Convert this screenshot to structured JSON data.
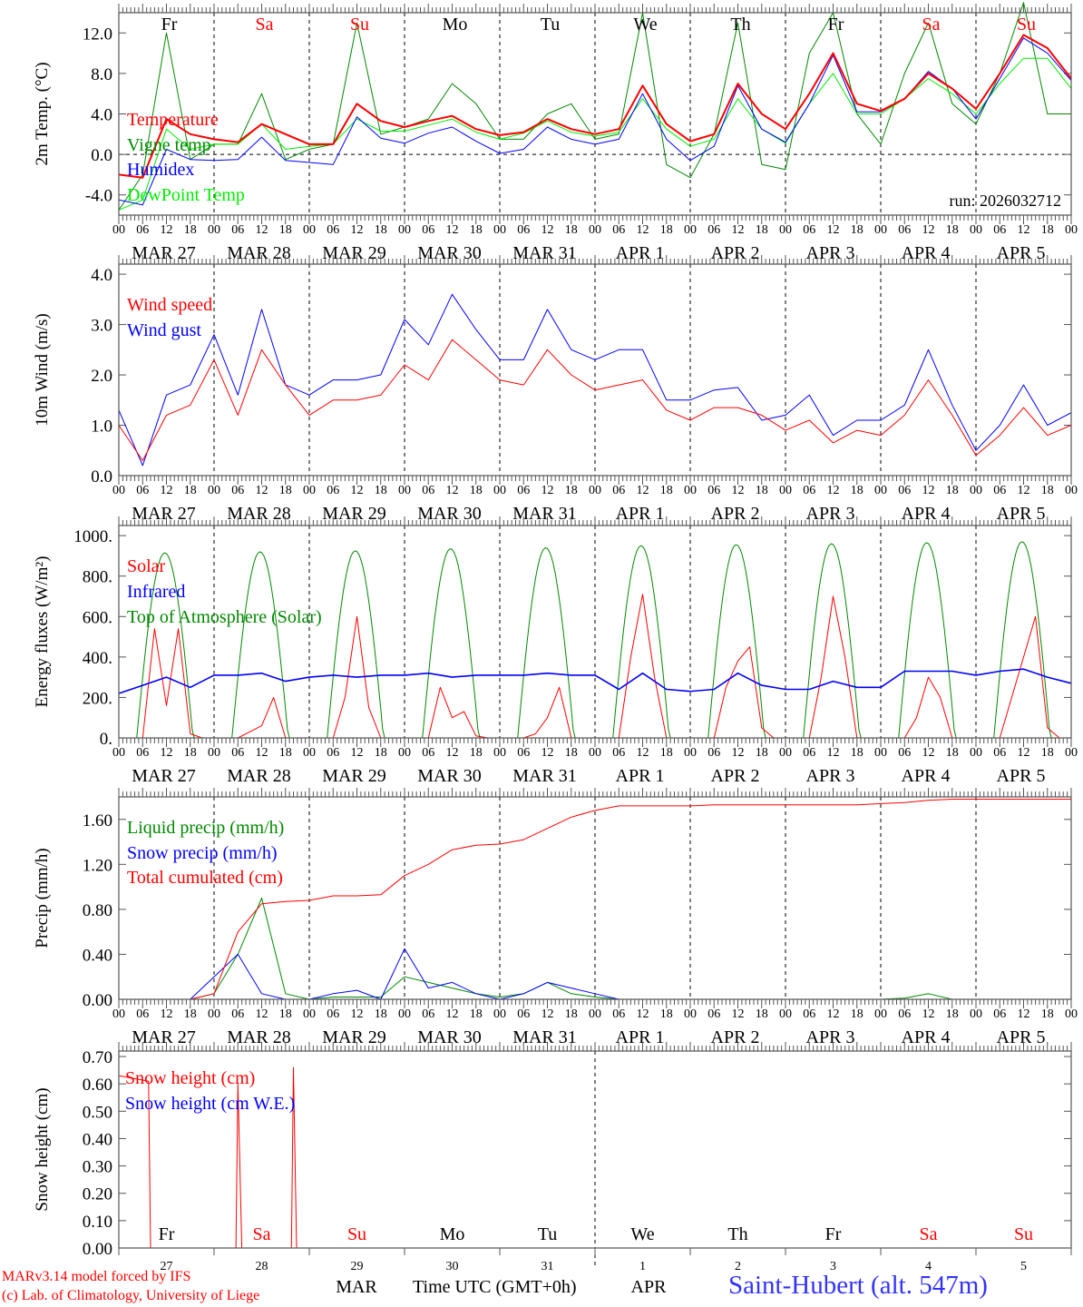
{
  "footer": {
    "credit_model": "MARv3.14 model forced by IFS",
    "credit_lab": "(c) Lab. of Climatology, University of Liege",
    "station": "Saint-Hubert (alt. 547m)",
    "xlabel": "Time UTC (GMT+0h)",
    "months": [
      "MAR",
      "APR"
    ]
  },
  "x_axis": {
    "hour_labels": [
      "00",
      "06",
      "12",
      "18"
    ],
    "end_label": "00",
    "dates": [
      "MAR 27",
      "MAR 28",
      "MAR 29",
      "MAR 30",
      "MAR 31",
      "APR 1",
      "APR 2",
      "APR 3",
      "APR 4",
      "APR 5"
    ],
    "day_numbers": [
      "27",
      "28",
      "29",
      "30",
      "31",
      "1",
      "2",
      "3",
      "4",
      "5"
    ],
    "weekdays": [
      "Fr",
      "Sa",
      "Su",
      "Mo",
      "Tu",
      "We",
      "Th",
      "Fr",
      "Sa",
      "Su"
    ],
    "weekday_colors": [
      "#000000",
      "#ff0000",
      "#ff0000",
      "#000000",
      "#000000",
      "#000000",
      "#000000",
      "#000000",
      "#ff0000",
      "#ff0000"
    ]
  },
  "chart_data": [
    {
      "type": "line",
      "ylabel": "2m Temp. (°C)",
      "ylim": [
        -6,
        14
      ],
      "yticks": [
        -4,
        0,
        4,
        8,
        12
      ],
      "ytick_labels": [
        "-4.0",
        "0.0",
        "4.0",
        "8.0",
        "12.0"
      ],
      "xlim_hours": [
        0,
        240
      ],
      "annotation": "run: 2026032712",
      "zero_line": true,
      "series": [
        {
          "name": "Vigne temp",
          "color": "#008800",
          "step": 6,
          "values": [
            -5.5,
            -2,
            12,
            -0.5,
            1,
            1,
            6,
            -0.5,
            0.5,
            1,
            13,
            2,
            2.7,
            3.5,
            7,
            5,
            1.5,
            1.5,
            4,
            5,
            1.5,
            2,
            14,
            -1,
            -2.3,
            2,
            13,
            -1,
            -1.5,
            10,
            14,
            4,
            1,
            8,
            13,
            5,
            3,
            8,
            15,
            4,
            4
          ]
        },
        {
          "name": "DewPoint Temp",
          "color": "#00ee00",
          "step": 6,
          "values": [
            -5.5,
            -4.5,
            2.5,
            0.5,
            1,
            1,
            3,
            0.5,
            0.8,
            1,
            3.5,
            2.3,
            2.3,
            2.9,
            3.5,
            2.2,
            1.5,
            2.1,
            3.3,
            2.2,
            1.8,
            2.2,
            5.5,
            2.5,
            0.8,
            1.5,
            5.5,
            2.5,
            1.1,
            5,
            8,
            4,
            4,
            5.5,
            7.5,
            6,
            4,
            7,
            9.5,
            9.5,
            6.5
          ]
        },
        {
          "name": "Humidex",
          "color": "#0000ff",
          "step": 6,
          "values": [
            -4.5,
            -5,
            0.5,
            -0.5,
            -0.6,
            -0.5,
            1.7,
            -0.6,
            -0.8,
            -1,
            3.7,
            1.6,
            1.1,
            2.1,
            2.7,
            1.3,
            0.1,
            0.5,
            2.7,
            1.5,
            1,
            1.5,
            6,
            1.5,
            -0.6,
            0.8,
            6.8,
            2.5,
            1.2,
            5,
            9.8,
            4.2,
            4.2,
            5.5,
            8.2,
            6.5,
            3.5,
            7.5,
            11.5,
            10,
            7.3
          ]
        },
        {
          "name": "Temperature",
          "color": "#ff0000",
          "width": 2,
          "step": 6,
          "values": [
            -2,
            -2.3,
            3.5,
            2,
            1.5,
            1.2,
            3,
            2,
            1,
            1,
            5,
            3.3,
            2.7,
            3.3,
            3.8,
            2.5,
            1.9,
            2.2,
            3.5,
            2.5,
            2,
            2.5,
            6.8,
            3,
            1.3,
            2,
            7,
            4,
            2.5,
            6,
            10,
            5,
            4.3,
            5.5,
            8,
            6.5,
            4.5,
            8,
            11.8,
            10.5,
            7.5
          ]
        }
      ],
      "legend": [
        {
          "label": "Temperature",
          "color": "#ff0000"
        },
        {
          "label": "Vigne temp",
          "color": "#008800"
        },
        {
          "label": "Humidex",
          "color": "#0000ff"
        },
        {
          "label": "DewPoint Temp",
          "color": "#00ee00"
        }
      ]
    },
    {
      "type": "line",
      "ylabel": "10m Wind (m/s)",
      "ylim": [
        0,
        4.2
      ],
      "yticks": [
        0,
        1,
        2,
        3,
        4
      ],
      "ytick_labels": [
        "0.0",
        "1.0",
        "2.0",
        "3.0",
        "4.0"
      ],
      "xlim_hours": [
        0,
        240
      ],
      "series": [
        {
          "name": "Wind gust",
          "color": "#0000ff",
          "step": 6,
          "values": [
            1.3,
            0.2,
            1.6,
            1.8,
            2.8,
            1.6,
            3.3,
            1.8,
            1.6,
            1.9,
            1.9,
            2.0,
            3.1,
            2.6,
            3.6,
            2.9,
            2.3,
            2.3,
            3.3,
            2.5,
            2.3,
            2.5,
            2.5,
            1.5,
            1.5,
            1.7,
            1.75,
            1.1,
            1.2,
            1.6,
            0.8,
            1.1,
            1.1,
            1.4,
            2.5,
            1.4,
            0.5,
            1.0,
            1.8,
            1.0,
            1.25
          ]
        },
        {
          "name": "Wind speed",
          "color": "#ff0000",
          "step": 6,
          "values": [
            1.0,
            0.3,
            1.2,
            1.4,
            2.3,
            1.2,
            2.5,
            1.8,
            1.2,
            1.5,
            1.5,
            1.6,
            2.2,
            1.9,
            2.7,
            2.3,
            1.9,
            1.8,
            2.5,
            2.0,
            1.7,
            1.8,
            1.9,
            1.3,
            1.1,
            1.35,
            1.35,
            1.2,
            0.9,
            1.1,
            0.65,
            0.9,
            0.8,
            1.2,
            1.9,
            1.2,
            0.4,
            0.8,
            1.35,
            0.8,
            1.0
          ]
        }
      ],
      "legend": [
        {
          "label": "Wind speed",
          "color": "#ff0000"
        },
        {
          "label": "Wind gust",
          "color": "#0000ff"
        }
      ]
    },
    {
      "type": "line",
      "ylabel": "Energy fluxes (W/m²)",
      "ylim": [
        0,
        1050
      ],
      "yticks": [
        0,
        200,
        400,
        600,
        800,
        1000
      ],
      "ytick_labels": [
        "0.",
        "200.",
        "400.",
        "600.",
        "800.",
        "1000."
      ],
      "xlim_hours": [
        0,
        240
      ],
      "toa": {
        "name": "Top of Atmosphere (Solar)",
        "color": "#008800",
        "daily_peaks": [
          915,
          920,
          925,
          935,
          940,
          950,
          955,
          960,
          965,
          970
        ],
        "sunrise_hour": 4.5,
        "sunset_hour": 18.7
      },
      "series": [
        {
          "name": "Solar",
          "color": "#ff0000",
          "step": 3,
          "values": [
            0,
            0,
            0,
            540,
            160,
            540,
            20,
            0,
            0,
            0,
            0,
            30,
            60,
            200,
            0,
            0,
            0,
            0,
            0,
            200,
            600,
            150,
            0,
            0,
            0,
            0,
            0,
            250,
            100,
            130,
            10,
            0,
            0,
            0,
            0,
            20,
            100,
            250,
            0,
            0,
            0,
            0,
            0,
            400,
            710,
            300,
            0,
            0,
            0,
            0,
            0,
            250,
            380,
            450,
            50,
            0,
            0,
            0,
            0,
            300,
            700,
            400,
            0,
            0,
            0,
            0,
            0,
            100,
            300,
            200,
            0,
            0,
            0,
            0,
            0,
            200,
            400,
            600,
            50,
            0,
            0
          ]
        },
        {
          "name": "Infrared",
          "color": "#0000ff",
          "width": 1.6,
          "step": 6,
          "values": [
            220,
            260,
            300,
            250,
            310,
            310,
            320,
            280,
            300,
            310,
            300,
            310,
            310,
            320,
            300,
            310,
            310,
            310,
            320,
            310,
            310,
            240,
            320,
            240,
            230,
            240,
            320,
            260,
            240,
            240,
            280,
            250,
            250,
            330,
            330,
            330,
            310,
            330,
            340,
            300,
            270
          ]
        }
      ],
      "legend": [
        {
          "label": "Solar",
          "color": "#ff0000"
        },
        {
          "label": "Infrared",
          "color": "#0000ff"
        },
        {
          "label": "Top of Atmosphere (Solar)",
          "color": "#008800"
        }
      ]
    },
    {
      "type": "line",
      "ylabel": "Precip (mm/h)",
      "ylim": [
        0,
        1.8
      ],
      "yticks": [
        0,
        0.4,
        0.8,
        1.2,
        1.6
      ],
      "ytick_labels": [
        "0.00",
        "0.40",
        "0.80",
        "1.20",
        "1.60"
      ],
      "xlim_hours": [
        0,
        240
      ],
      "series": [
        {
          "name": "Liquid precip (mm/h)",
          "color": "#008800",
          "step": 6,
          "values": [
            0,
            0,
            0,
            0,
            0.05,
            0.4,
            0.9,
            0.05,
            0,
            0.02,
            0.02,
            0.02,
            0.2,
            0.15,
            0.1,
            0.05,
            0.02,
            0.05,
            0.15,
            0.05,
            0.02,
            0,
            0,
            0,
            0,
            0,
            0,
            0,
            0,
            0,
            0,
            0,
            0,
            0.01,
            0.05,
            0,
            0,
            0,
            0,
            0,
            0
          ]
        },
        {
          "name": "Snow precip (mm/h)",
          "color": "#0000ff",
          "step": 6,
          "values": [
            0,
            0,
            0,
            0,
            0.2,
            0.4,
            0.05,
            0,
            0,
            0.05,
            0.08,
            0,
            0.45,
            0.1,
            0.15,
            0.05,
            0,
            0.05,
            0.15,
            0.1,
            0.05,
            0,
            0,
            0,
            0,
            0,
            0,
            0,
            0,
            0,
            0,
            0,
            0,
            0,
            0,
            0,
            0,
            0,
            0,
            0,
            0
          ]
        },
        {
          "name": "Total cumulated (cm)",
          "color": "#ff0000",
          "step": 6,
          "values": [
            0,
            0,
            0,
            0,
            0.05,
            0.6,
            0.85,
            0.87,
            0.88,
            0.92,
            0.92,
            0.93,
            1.1,
            1.2,
            1.33,
            1.37,
            1.38,
            1.42,
            1.52,
            1.62,
            1.68,
            1.72,
            1.72,
            1.72,
            1.72,
            1.73,
            1.73,
            1.73,
            1.73,
            1.73,
            1.73,
            1.73,
            1.74,
            1.75,
            1.77,
            1.78,
            1.78,
            1.78,
            1.78,
            1.78,
            1.78
          ]
        }
      ],
      "legend": [
        {
          "label": "Liquid precip (mm/h)",
          "color": "#008800"
        },
        {
          "label": "Snow precip (mm/h)",
          "color": "#0000ff"
        },
        {
          "label": "Total cumulated (cm)",
          "color": "#ff0000"
        }
      ]
    },
    {
      "type": "line",
      "ylabel": "Snow height (cm)",
      "ylim": [
        0,
        0.72
      ],
      "yticks": [
        0,
        0.1,
        0.2,
        0.3,
        0.4,
        0.5,
        0.6,
        0.7
      ],
      "ytick_labels": [
        "0.00",
        "0.10",
        "0.20",
        "0.30",
        "0.40",
        "0.50",
        "0.60",
        "0.70"
      ],
      "xlim_hours": [
        0,
        240
      ],
      "series": [
        {
          "name": "Snow height (cm W.E.)",
          "color": "#0000ff",
          "points": [
            [
              0,
              0
            ],
            [
              240,
              0
            ]
          ]
        },
        {
          "name": "Snow height (cm)",
          "color": "#ff0000",
          "points": [
            [
              0,
              0.63
            ],
            [
              7.5,
              0.61
            ],
            [
              8,
              0
            ],
            [
              29.5,
              0
            ],
            [
              30,
              0.6
            ],
            [
              31,
              0
            ],
            [
              43.5,
              0
            ],
            [
              44,
              0.66
            ],
            [
              44.8,
              0
            ],
            [
              240,
              0
            ]
          ]
        }
      ],
      "legend": [
        {
          "label": "Snow height (cm)",
          "color": "#ff0000"
        },
        {
          "label": "Snow height (cm W.E.)",
          "color": "#0000ff"
        }
      ]
    }
  ]
}
